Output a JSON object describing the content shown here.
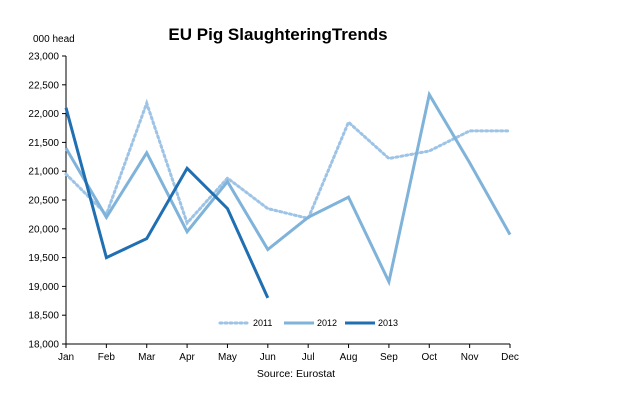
{
  "chart_data": {
    "type": "line",
    "title": "EU Pig SlaughteringTrends",
    "unit_label": "000 head",
    "source": "Source: Eurostat",
    "categories": [
      "Jan",
      "Feb",
      "Mar",
      "Apr",
      "May",
      "Jun",
      "Jul",
      "Aug",
      "Sep",
      "Oct",
      "Nov",
      "Dec"
    ],
    "ylim": [
      18000,
      23000
    ],
    "ytick_values": [
      18000,
      18500,
      19000,
      19500,
      20000,
      20500,
      21000,
      21500,
      22000,
      22500,
      23000
    ],
    "ytick_labels": [
      "18,000",
      "18,500",
      "19,000",
      "19,500",
      "20,000",
      "20,500",
      "21,000",
      "21,500",
      "22,000",
      "22,500",
      "23,000"
    ],
    "grid": false,
    "legend_position": "bottom-center",
    "series": [
      {
        "name": "2011",
        "style": "dotted",
        "color": "#9dc3e6",
        "values": [
          20950,
          20250,
          22180,
          20100,
          20880,
          20350,
          20180,
          21850,
          21220,
          21350,
          21700,
          21700
        ]
      },
      {
        "name": "2012",
        "style": "solid",
        "color": "#7fb3da",
        "values": [
          21400,
          20200,
          21320,
          19950,
          20820,
          19640,
          20200,
          20550,
          19080,
          22330,
          21150,
          19900
        ]
      },
      {
        "name": "2013",
        "style": "solid",
        "color": "#1f6fb2",
        "values": [
          22100,
          19500,
          19830,
          21050,
          20350,
          18800,
          null,
          null,
          null,
          null,
          null,
          null
        ]
      }
    ]
  }
}
